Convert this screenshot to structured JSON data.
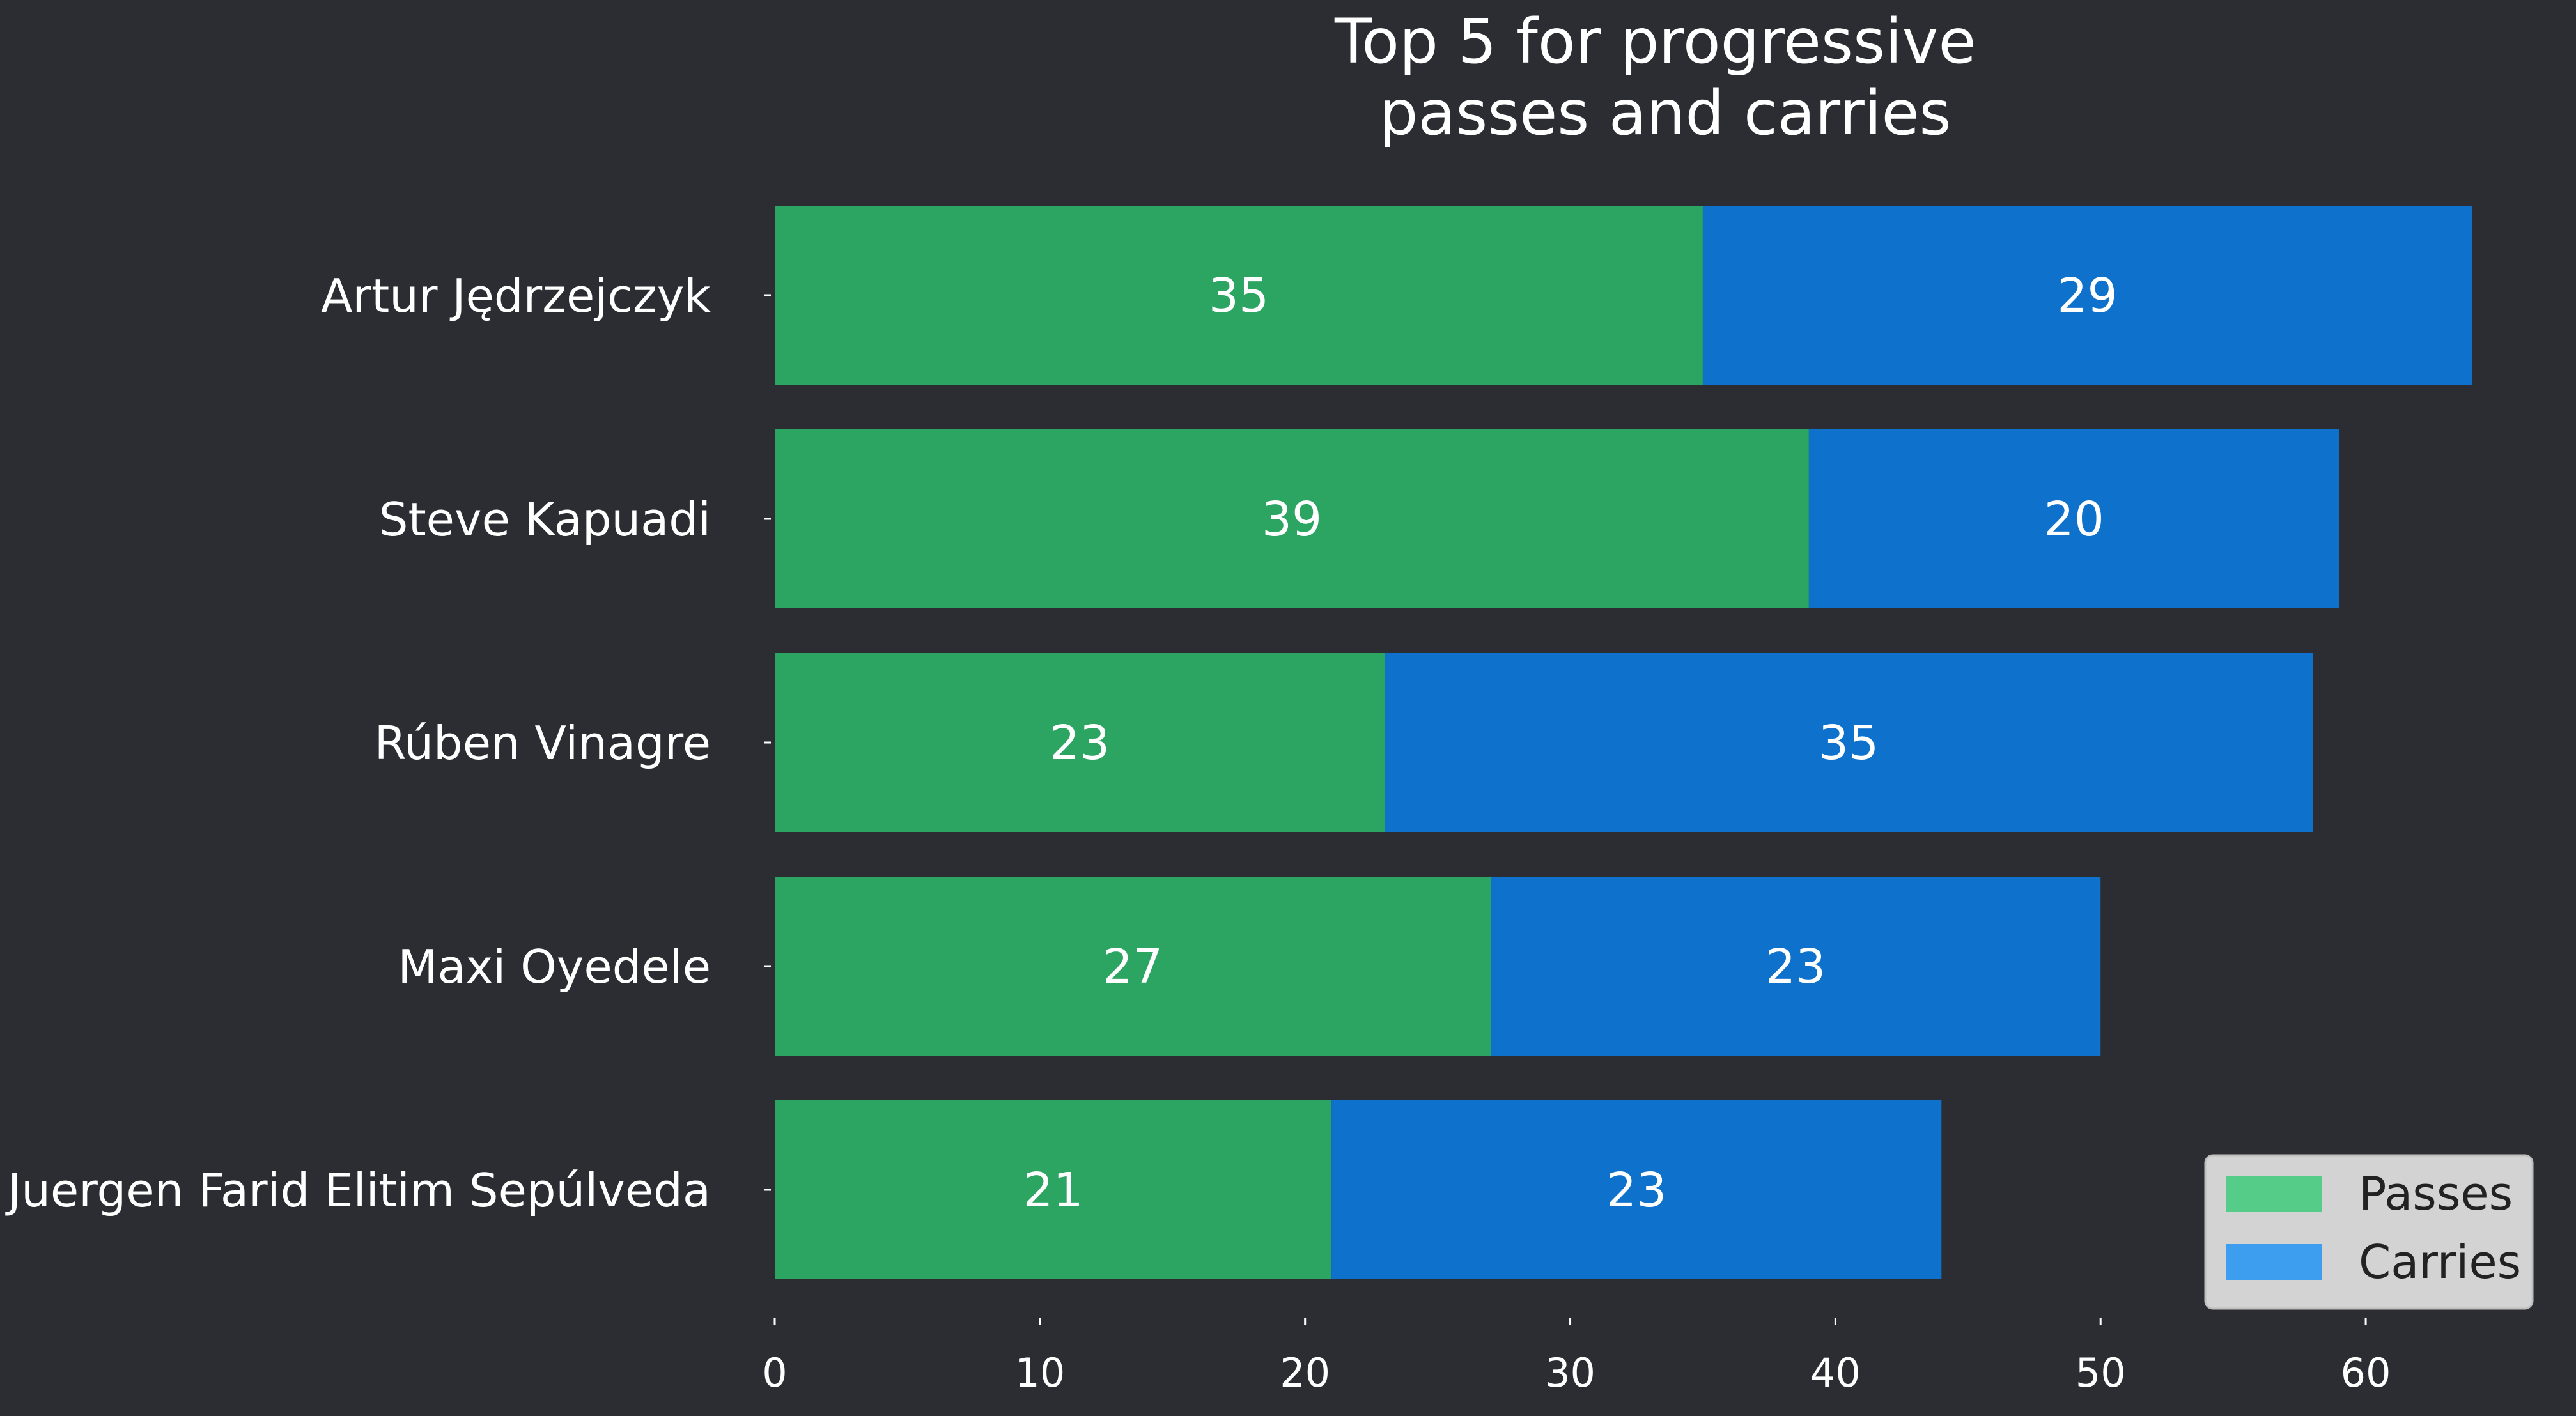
{
  "chart_data": {
    "type": "bar",
    "orientation": "horizontal",
    "stacked": true,
    "title": "Top 5 for progressive\npasses and carries",
    "xlabel": "",
    "ylabel": "",
    "categories": [
      "Artur Jędrzejczyk",
      "Steve Kapuadi",
      "Rúben Vinagre",
      "Maxi Oyedele",
      "Juergen Farid Elitim Sepúlveda"
    ],
    "series": [
      {
        "name": "Passes",
        "values": [
          35,
          39,
          23,
          27,
          21
        ],
        "color": "#2ca462",
        "legend_color": "#55cc88"
      },
      {
        "name": "Carries",
        "values": [
          29,
          20,
          35,
          23,
          23
        ],
        "color": "#0e72cc",
        "legend_color": "#3d9ef0"
      }
    ],
    "xlim": [
      0,
      64
    ],
    "xticks": [
      0,
      10,
      20,
      30,
      40,
      50,
      60
    ],
    "grid": false,
    "legend_position": "bottom-right",
    "background": "#2c2d33",
    "legend_background": "#d3d3d3"
  }
}
